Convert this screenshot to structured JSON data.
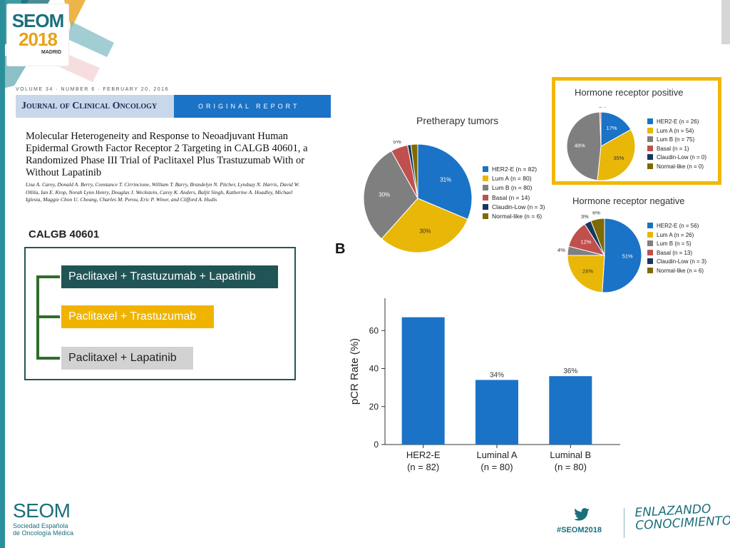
{
  "branding": {
    "logo_line1": "SEOM",
    "logo_line2": "2018",
    "logo_city": "MADRID",
    "footer_name": "SEOM",
    "footer_sub1": "Sociedad Española",
    "footer_sub2": "de Oncología Médica",
    "hashtag": "#SEOM2018",
    "slogan_line1": "ENLAZANDO",
    "slogan_line2": "CONOCIMIENTO",
    "teal": "#1b6f7b",
    "gold": "#e8a21b"
  },
  "paper": {
    "volume_line": "VOLUME 34 · NUMBER 6 · FEBRUARY 20, 2016",
    "journal": "Journal of Clinical Oncology",
    "section": "ORIGINAL REPORT",
    "title": "Molecular Heterogeneity and Response to Neoadjuvant Human Epidermal Growth Factor Receptor 2 Targeting in CALGB 40601, a Randomized Phase III Trial of Paclitaxel Plus Trastuzumab With or Without Lapatinib",
    "authors": "Lisa A. Carey, Donald A. Berry, Constance T. Cirrincione, William T. Barry, Brandelyn N. Pitcher, Lyndsay N. Harris, David W. Ollila, Ian E. Krop, Norah Lynn Henry, Douglas J. Weckstein, Carey K. Anders, Baljit Singh, Katherine A. Hoadley, Michael Iglesia, Maggie Chon U. Cheang, Charles M. Perou, Eric P. Winer, and Clifford A. Hudis"
  },
  "trial": {
    "label": "CALGB 40601",
    "arms": [
      {
        "label": "Paclitaxel + Trastuzumab + Lapatinib",
        "color": "#215456"
      },
      {
        "label": "Paclitaxel + Trastuzumab",
        "color": "#f0b400"
      },
      {
        "label": "Paclitaxel + Lapatinib",
        "color": "#d2d2d2"
      }
    ]
  },
  "panel_label": "B",
  "subtype_colors": {
    "HER2-E": "#1a73c6",
    "Lum A": "#e9b708",
    "Lum B": "#7f7f7f",
    "Basal": "#c0504d",
    "Claudin-Low": "#17375e",
    "Normal-like": "#7f6a00"
  },
  "chart_data": [
    {
      "type": "pie",
      "title": "Pretherapy tumors",
      "slices": [
        {
          "label": "HER2-E (n = 82)",
          "key": "HER2-E",
          "value": 31,
          "text": "31%"
        },
        {
          "label": "Lum A (n = 80)",
          "key": "Lum A",
          "value": 30,
          "text": "30%"
        },
        {
          "label": "Lum B (n = 80)",
          "key": "Lum B",
          "value": 30,
          "text": "30%"
        },
        {
          "label": "Basal (n = 14)",
          "key": "Basal",
          "value": 5,
          "text": "5%"
        },
        {
          "label": "Claudin-Low (n = 3)",
          "key": "Claudin-Low",
          "value": 1,
          "text": "1%"
        },
        {
          "label": "Normal-like (n = 6)",
          "key": "Normal-like",
          "value": 2,
          "text": "2%"
        }
      ],
      "legend_position": "right"
    },
    {
      "type": "pie",
      "title": "Hormone receptor positive",
      "slices": [
        {
          "label": "HER2-E (n = 26)",
          "key": "HER2-E",
          "value": 17,
          "text": "17%"
        },
        {
          "label": "Lum A (n = 54)",
          "key": "Lum A",
          "value": 35,
          "text": "35%"
        },
        {
          "label": "Lum B (n = 75)",
          "key": "Lum B",
          "value": 48,
          "text": "48%"
        },
        {
          "label": "Basal (n = 1)",
          "key": "Basal",
          "value": 0.6,
          "text": "< 1%"
        },
        {
          "label": "Claudin-Low (n = 0)",
          "key": "Claudin-Low",
          "value": 0,
          "text": ""
        },
        {
          "label": "Normal-like (n = 0)",
          "key": "Normal-like",
          "value": 0,
          "text": ""
        }
      ],
      "legend_position": "right"
    },
    {
      "type": "pie",
      "title": "Hormone receptor negative",
      "slices": [
        {
          "label": "HER2-E (n = 56)",
          "key": "HER2-E",
          "value": 51,
          "text": "51%"
        },
        {
          "label": "Lum A (n = 26)",
          "key": "Lum A",
          "value": 24,
          "text": "24%"
        },
        {
          "label": "Lum B (n = 5)",
          "key": "Lum B",
          "value": 4,
          "text": "4%"
        },
        {
          "label": "Basal (n = 13)",
          "key": "Basal",
          "value": 12,
          "text": "12%"
        },
        {
          "label": "Claudin-Low (n = 3)",
          "key": "Claudin-Low",
          "value": 3,
          "text": "3%"
        },
        {
          "label": "Normal-like (n = 6)",
          "key": "Normal-like",
          "value": 6,
          "text": "6%"
        }
      ],
      "legend_position": "right"
    },
    {
      "type": "bar",
      "title": "",
      "categories": [
        "HER2-E\n(n = 82)",
        "Luminal A\n(n = 80)",
        "Luminal B\n(n = 80)"
      ],
      "values": [
        67,
        34,
        36
      ],
      "data_labels": [
        "",
        "34%",
        "36%"
      ],
      "xlabel": "",
      "ylabel": "pCR Rate (%)",
      "ylim": [
        0,
        77
      ],
      "yticks": [
        0,
        20,
        40,
        60
      ],
      "bar_color": "#1a73c6",
      "grid": false
    }
  ]
}
